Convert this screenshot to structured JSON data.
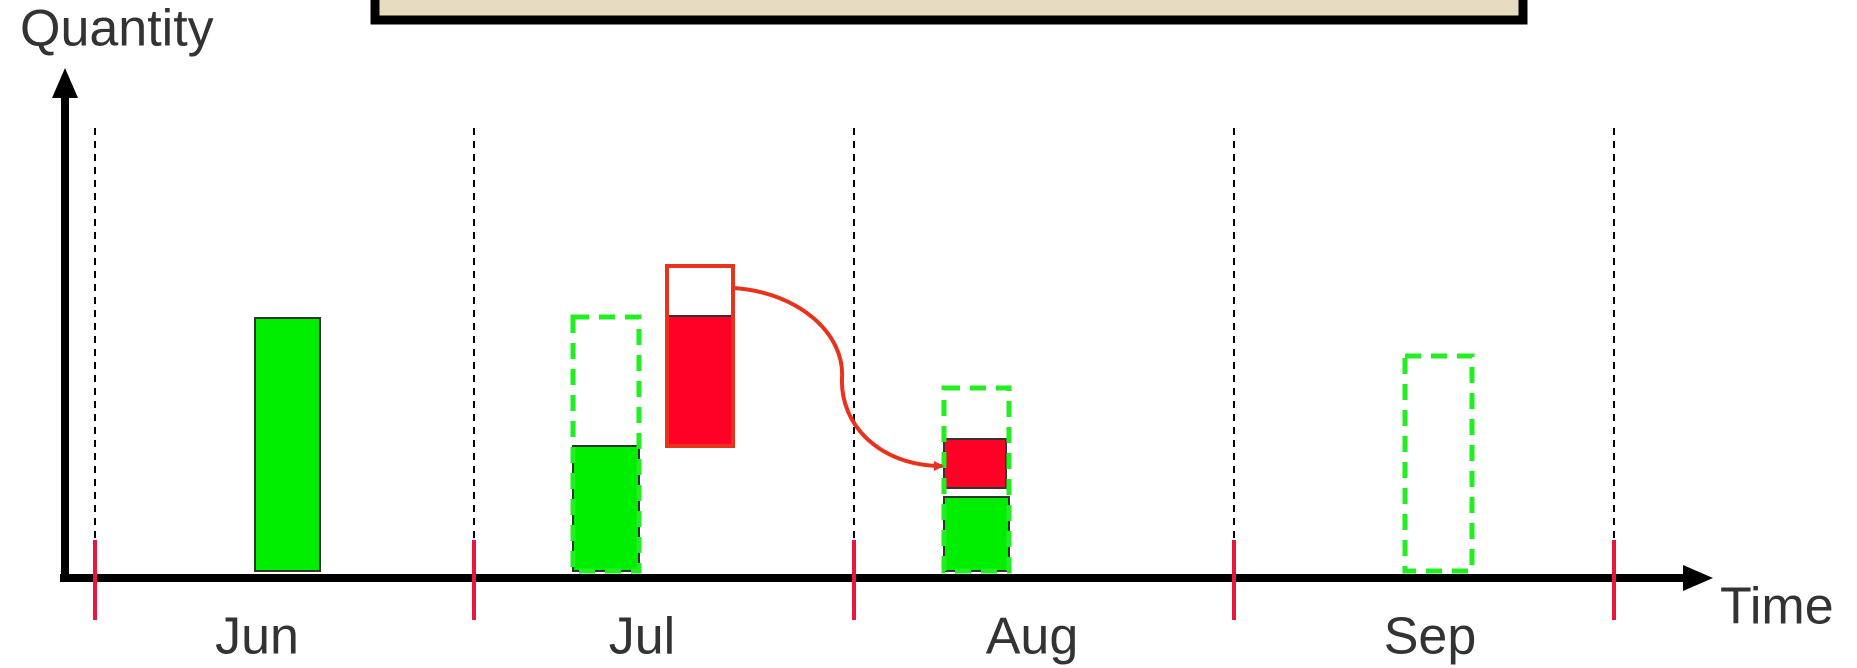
{
  "axes": {
    "y_label": "Quantity",
    "x_label": "Time"
  },
  "periods": [
    "Jun",
    "Jul",
    "Aug",
    "Sep"
  ]
}
